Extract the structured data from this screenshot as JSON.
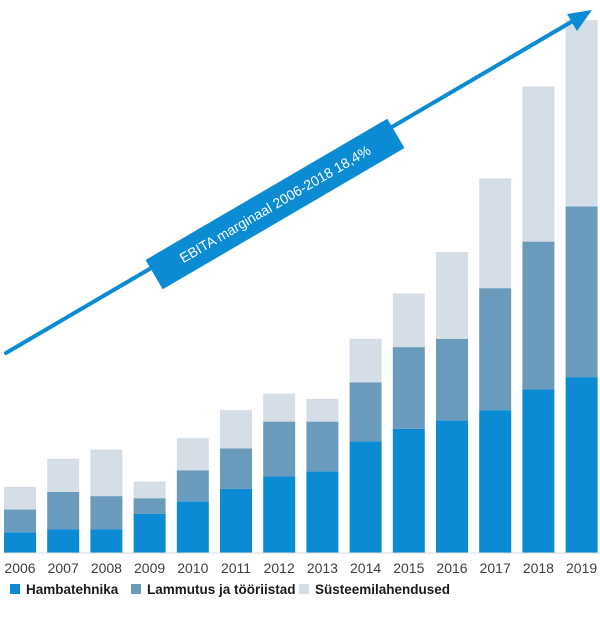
{
  "chart_data": {
    "type": "bar",
    "stacked": true,
    "categories": [
      "2006",
      "2007",
      "2008",
      "2009",
      "2010",
      "2011",
      "2012",
      "2013",
      "2014",
      "2015",
      "2016",
      "2017",
      "2018",
      "2019"
    ],
    "series": [
      {
        "name": "Hambatehnika",
        "color": "#0a8bd3",
        "values": [
          20,
          23,
          23,
          38,
          50,
          62,
          74,
          79,
          108,
          120,
          128,
          138,
          158,
          170
        ]
      },
      {
        "name": "Lammutus ja tööriistad",
        "color": "#6a9bbd",
        "values": [
          22,
          36,
          32,
          15,
          30,
          39,
          53,
          48,
          57,
          79,
          79,
          118,
          143,
          165
        ]
      },
      {
        "name": "Süsteemilahendused",
        "color": "#d5dee6",
        "values": [
          22,
          32,
          45,
          16,
          31,
          37,
          27,
          22,
          42,
          52,
          84,
          106,
          150,
          180
        ]
      }
    ],
    "ylim": [
      0,
      520
    ],
    "grid": false,
    "legend_position": "bottom-left",
    "annotation": {
      "text": "EBITA marginaal 2006-2018 18,4%",
      "color": "#0a8bd3"
    }
  }
}
